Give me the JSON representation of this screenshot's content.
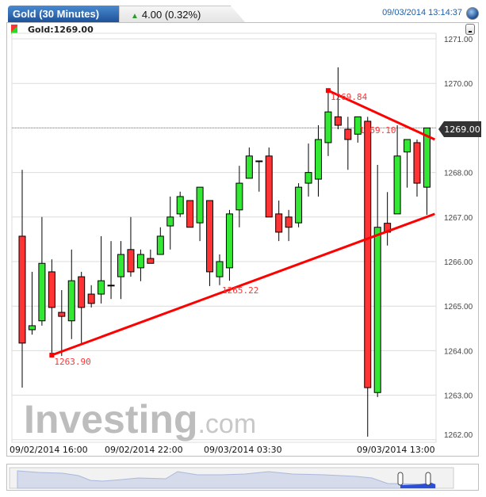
{
  "header": {
    "tab_title": "Gold (30 Minutes)",
    "change": "4.00 (0.32%)",
    "change_direction": "up",
    "datetime": "09/03/2014 13:14:37",
    "globe_icon": "globe-icon"
  },
  "legend": {
    "label": "Gold:1269.00",
    "minimize_icon": "minimize-icon"
  },
  "watermark": {
    "text": "Investing",
    "suffix": ".com"
  },
  "colors": {
    "up": "#33e833",
    "down": "#ff3333",
    "trendline": "#ff0000",
    "tab": "#1c4f95",
    "date": "#1f5fa8",
    "price_tag": "#333333"
  },
  "chart_data": {
    "type": "candlestick",
    "interval": "30 Minutes",
    "ylim": [
      1262,
      1271
    ],
    "y_ticks": [
      "1271.00",
      "1270.00",
      "1269.00",
      "1268.00",
      "1267.00",
      "1266.00",
      "1265.00",
      "1264.00",
      "1263.00",
      "1262.00"
    ],
    "x_ticks": [
      "09/02/2014 16:00",
      "09/02/2014 22:00",
      "09/03/2014 03:30",
      "09/03/2014 13:00"
    ],
    "last_price": "1269.00",
    "grid": true,
    "candles_ohlc": [
      [
        1266.57,
        1268.06,
        1263.17,
        1264.17
      ],
      [
        1264.47,
        1265.77,
        1264.36,
        1264.56
      ],
      [
        1264.67,
        1267.0,
        1264.56,
        1265.96
      ],
      [
        1265.77,
        1266.05,
        1263.9,
        1264.97
      ],
      [
        1264.86,
        1265.36,
        1263.88,
        1264.77
      ],
      [
        1264.67,
        1266.27,
        1264.26,
        1265.57
      ],
      [
        1265.66,
        1265.77,
        1264.17,
        1264.97
      ],
      [
        1265.27,
        1265.47,
        1264.97,
        1265.06
      ],
      [
        1265.27,
        1266.57,
        1265.06,
        1265.57
      ],
      [
        1265.47,
        1266.46,
        1265.16,
        1265.47
      ],
      [
        1265.66,
        1266.46,
        1265.16,
        1266.16
      ],
      [
        1266.27,
        1267.0,
        1265.66,
        1265.77
      ],
      [
        1265.86,
        1266.27,
        1265.56,
        1266.16
      ],
      [
        1266.07,
        1266.27,
        1265.96,
        1265.96
      ],
      [
        1266.16,
        1266.77,
        1266.16,
        1266.57
      ],
      [
        1266.8,
        1267.46,
        1266.27,
        1267.0
      ],
      [
        1267.07,
        1267.57,
        1267.0,
        1267.46
      ],
      [
        1267.37,
        1267.37,
        1266.77,
        1266.77
      ],
      [
        1266.87,
        1267.67,
        1266.46,
        1267.67
      ],
      [
        1267.37,
        1267.37,
        1265.45,
        1265.77
      ],
      [
        1265.66,
        1266.16,
        1265.47,
        1266.0
      ],
      [
        1265.86,
        1267.16,
        1265.57,
        1267.07
      ],
      [
        1267.16,
        1268.15,
        1266.77,
        1267.76
      ],
      [
        1267.87,
        1268.56,
        1267.87,
        1268.37
      ],
      [
        1268.26,
        1268.26,
        1267.57,
        1268.26
      ],
      [
        1268.37,
        1268.56,
        1267.0,
        1267.0
      ],
      [
        1267.07,
        1267.37,
        1266.46,
        1266.66
      ],
      [
        1267.0,
        1267.16,
        1266.46,
        1266.77
      ],
      [
        1266.87,
        1267.76,
        1266.77,
        1267.67
      ],
      [
        1267.76,
        1268.65,
        1267.46,
        1268.0
      ],
      [
        1267.85,
        1269.06,
        1267.46,
        1268.74
      ],
      [
        1268.67,
        1269.83,
        1268.37,
        1269.36
      ],
      [
        1269.25,
        1270.36,
        1268.97,
        1269.06
      ],
      [
        1268.97,
        1269.25,
        1268.06,
        1268.74
      ],
      [
        1268.86,
        1269.25,
        1268.67,
        1269.25
      ],
      [
        1269.15,
        1269.25,
        1262.07,
        1263.17
      ],
      [
        1263.06,
        1268.17,
        1262.96,
        1266.77
      ],
      [
        1266.86,
        1267.56,
        1266.36,
        1266.66
      ],
      [
        1267.07,
        1269.06,
        1267.07,
        1268.37
      ],
      [
        1268.46,
        1268.74,
        1267.66,
        1268.74
      ],
      [
        1268.67,
        1268.74,
        1267.46,
        1267.76
      ],
      [
        1267.67,
        1269.0,
        1267.05,
        1269.0
      ]
    ],
    "trendlines": [
      {
        "from": {
          "candle": 4,
          "price": 1263.9
        },
        "to": {
          "candle": 42.8,
          "price": 1267.07
        }
      },
      {
        "from": {
          "candle": 32,
          "price": 1269.84
        },
        "to": {
          "candle": 42.8,
          "price": 1268.74
        }
      }
    ],
    "annotations": [
      {
        "text": "1263.90",
        "candle": 4,
        "price": 1263.9
      },
      {
        "text": "1265.22",
        "candle": 21,
        "price": 1265.22
      },
      {
        "text": "1269.84",
        "candle": 32,
        "price": 1269.84
      },
      {
        "text": "1269.10",
        "candle": 39,
        "price": 1269.1
      }
    ]
  }
}
